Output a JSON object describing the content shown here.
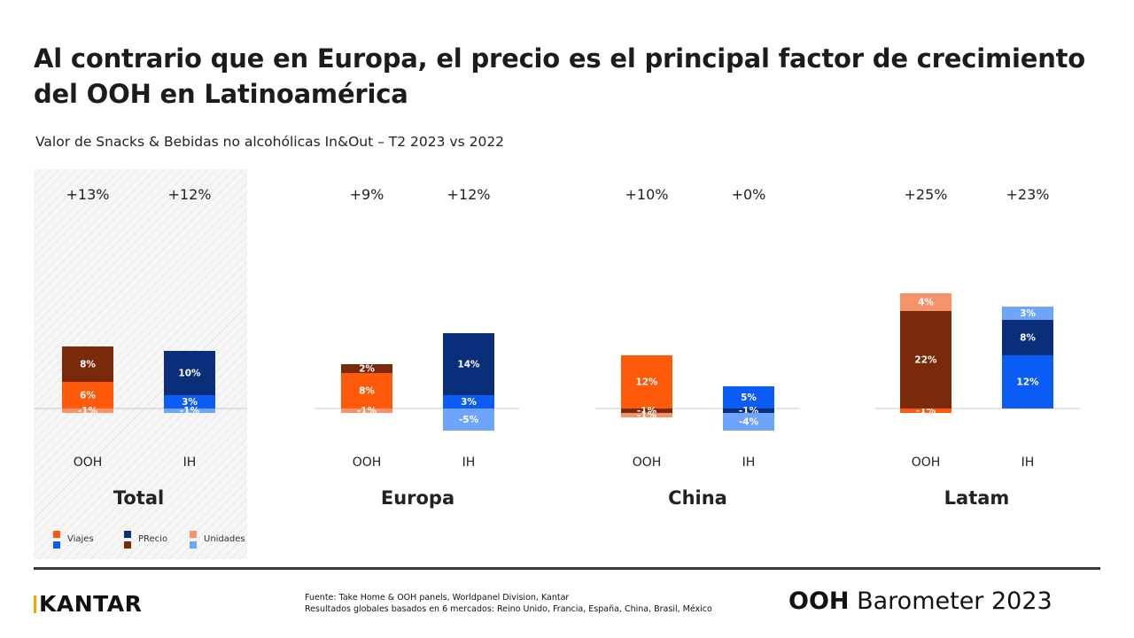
{
  "title": "Al contrario que en Europa, el precio es el principal factor de crecimiento del OOH en Latinoamérica",
  "subtitle": "Valor de Snacks & Bebidas no alcohólicas In&Out – T2 2023 vs 2022",
  "footer": {
    "logo": "KANTAR",
    "source_line1": "Fuente: Take Home & OOH panels, Worldpanel Division, Kantar",
    "source_line2": "Resultados globales basados en 6 mercados: Reino Unido, Francia, España, China, Brasil, México",
    "barometer_bold": "OOH",
    "barometer_rest": " Barometer 2023"
  },
  "colors": {
    "ooh_viajes": "#ff5a0a",
    "ooh_precio": "#7a2a0a",
    "ooh_unidades": "#f7936b",
    "ih_viajes": "#0a5cf5",
    "ih_precio": "#0a2e7a",
    "ih_unidades": "#6ea5fb"
  },
  "legend": [
    {
      "label": "Viajes",
      "colors": [
        "#ff5a0a",
        "#0a5cf5"
      ]
    },
    {
      "label": "PRecio",
      "colors": [
        "#0a2e7a",
        "#7a2a0a"
      ]
    },
    {
      "label": "Unidades",
      "colors": [
        "#f7936b",
        "#6ea5fb"
      ]
    }
  ],
  "chart_data": {
    "type": "bar",
    "stacked": true,
    "components": [
      "Viajes",
      "PRecio",
      "Unidades"
    ],
    "groups": [
      {
        "name": "Total",
        "highlighted": true,
        "bars": [
          {
            "label": "OOH",
            "total": "+13%",
            "segments": [
              {
                "component": "Viajes",
                "value": 6,
                "text": "6%"
              },
              {
                "component": "PRecio",
                "value": 8,
                "text": "8%"
              },
              {
                "component": "Unidades",
                "value": -1,
                "text": "-1%"
              }
            ]
          },
          {
            "label": "IH",
            "total": "+12%",
            "segments": [
              {
                "component": "Viajes",
                "value": 3,
                "text": "3%"
              },
              {
                "component": "PRecio",
                "value": 10,
                "text": "10%"
              },
              {
                "component": "Unidades",
                "value": -1,
                "text": "-1%"
              }
            ]
          }
        ]
      },
      {
        "name": "Europa",
        "bars": [
          {
            "label": "OOH",
            "total": "+9%",
            "segments": [
              {
                "component": "Viajes",
                "value": 8,
                "text": "8%"
              },
              {
                "component": "PRecio",
                "value": 2,
                "text": "2%"
              },
              {
                "component": "Unidades",
                "value": -1,
                "text": "-1%"
              }
            ]
          },
          {
            "label": "IH",
            "total": "+12%",
            "segments": [
              {
                "component": "Viajes",
                "value": 3,
                "text": "3%"
              },
              {
                "component": "PRecio",
                "value": 14,
                "text": "14%"
              },
              {
                "component": "Unidades",
                "value": -5,
                "text": "-5%"
              }
            ]
          }
        ]
      },
      {
        "name": "China",
        "bars": [
          {
            "label": "OOH",
            "total": "+10%",
            "segments": [
              {
                "component": "Viajes",
                "value": 12,
                "text": "12%"
              },
              {
                "component": "PRecio",
                "value": -1,
                "text": "-1%"
              },
              {
                "component": "Unidades",
                "value": -1,
                "text": "-1%"
              }
            ]
          },
          {
            "label": "IH",
            "total": "+0%",
            "segments": [
              {
                "component": "Viajes",
                "value": 5,
                "text": "5%"
              },
              {
                "component": "PRecio",
                "value": -1,
                "text": "-1%"
              },
              {
                "component": "Unidades",
                "value": -4,
                "text": "-4%"
              }
            ]
          }
        ]
      },
      {
        "name": "Latam",
        "bars": [
          {
            "label": "OOH",
            "total": "+25%",
            "segments": [
              {
                "component": "Viajes",
                "value": -1,
                "text": "-1%"
              },
              {
                "component": "PRecio",
                "value": 22,
                "text": "22%"
              },
              {
                "component": "Unidades",
                "value": 4,
                "text": "4%"
              }
            ]
          },
          {
            "label": "IH",
            "total": "+23%",
            "segments": [
              {
                "component": "Viajes",
                "value": 12,
                "text": "12%"
              },
              {
                "component": "PRecio",
                "value": 8,
                "text": "8%"
              },
              {
                "component": "Unidades",
                "value": 3,
                "text": "3%"
              }
            ]
          }
        ]
      }
    ]
  }
}
